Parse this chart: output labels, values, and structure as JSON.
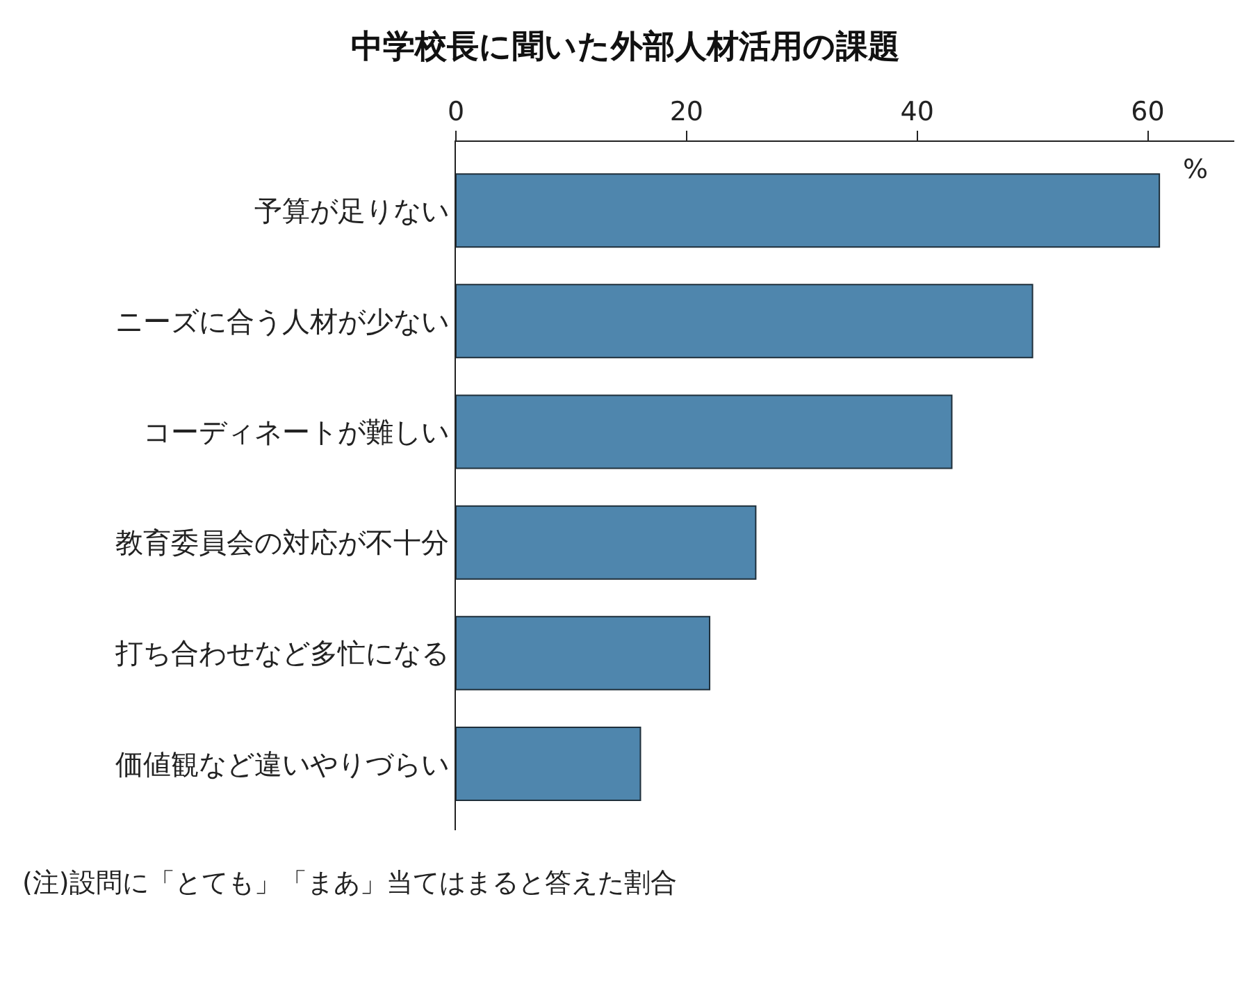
{
  "chart_data": {
    "type": "bar",
    "orientation": "horizontal",
    "title": "中学校長に聞いた外部人材活用の課題",
    "categories": [
      "予算が足りない",
      "ニーズに合う人材が少ない",
      "コーディネートが難しい",
      "教育委員会の対応が不十分",
      "打ち合わせなど多忙になる",
      "価値観など違いやりづらい"
    ],
    "values": [
      61,
      50,
      43,
      26,
      22,
      16
    ],
    "color": "#4f86ad",
    "xlim": [
      0,
      67.5
    ],
    "xticks": [
      0,
      20,
      40,
      60
    ],
    "annotations": [
      "%",
      "(注)設問に「とても」「まあ」当てはまると答えた割合"
    ]
  }
}
